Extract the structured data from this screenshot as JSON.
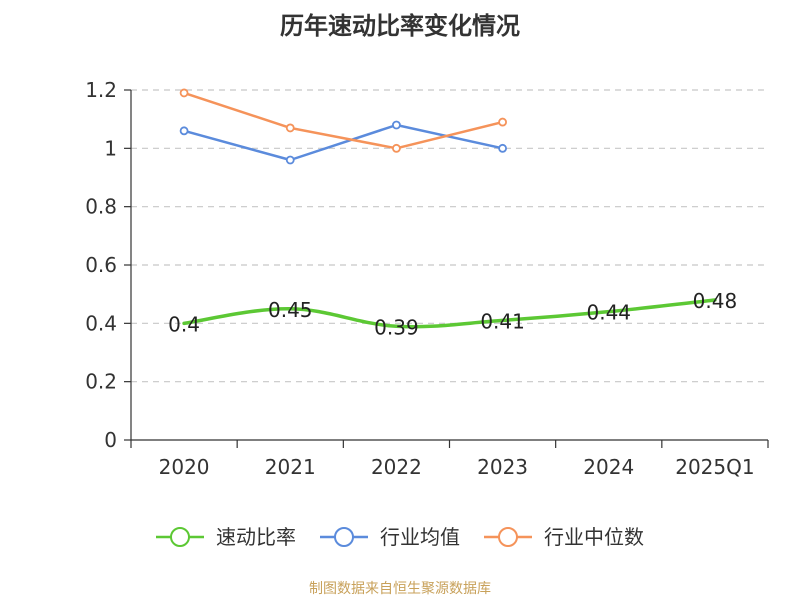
{
  "chart_data": {
    "type": "line",
    "title": "历年速动比率变化情况",
    "categories": [
      "2020",
      "2021",
      "2022",
      "2023",
      "2024",
      "2025Q1"
    ],
    "ylim": [
      0,
      1.2
    ],
    "yticks": [
      "0",
      "0.2",
      "0.4",
      "0.6",
      "0.8",
      "1",
      "1.2"
    ],
    "grid": true,
    "legend_position": "bottom",
    "series": [
      {
        "name": "速动比率",
        "color": "#5cc834",
        "values": [
          0.4,
          0.45,
          0.39,
          0.41,
          0.44,
          0.48
        ],
        "labels": [
          "0.4",
          "0.45",
          "0.39",
          "0.41",
          "0.44",
          "0.48"
        ],
        "marker": false,
        "smooth": true
      },
      {
        "name": "行业均值",
        "color": "#5b8bdc",
        "values": [
          1.06,
          0.96,
          1.08,
          1.0,
          null,
          null
        ],
        "marker": true
      },
      {
        "name": "行业中位数",
        "color": "#f5935a",
        "values": [
          1.19,
          1.07,
          1.0,
          1.09,
          null,
          null
        ],
        "marker": true
      }
    ]
  },
  "source_note": "制图数据来自恒生聚源数据库"
}
